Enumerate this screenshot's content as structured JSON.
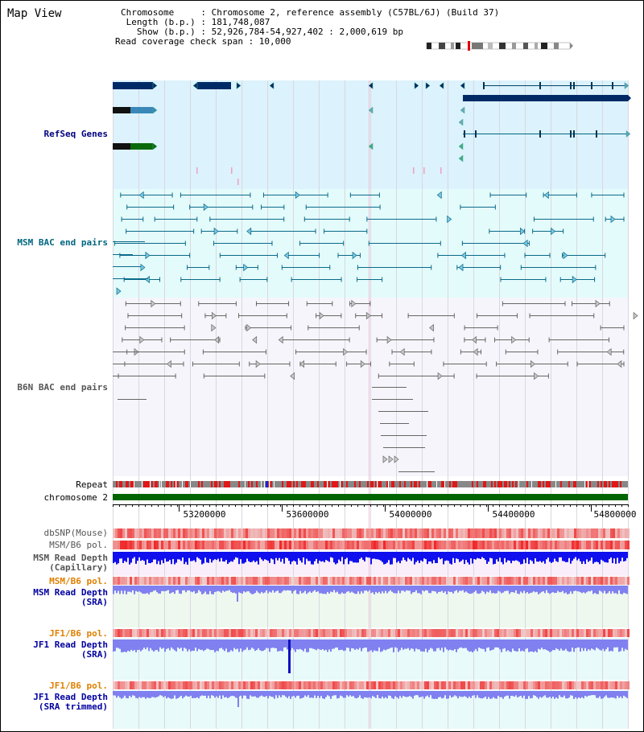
{
  "map_title": "Map View",
  "info": {
    "chromosome": "Chromosome     : Chromosome 2, reference assembly (C57BL/6J) (Build 37)",
    "length": " Length (b.p.) : 181,748,087",
    "show": "   Show (b.p.) : 52,926,784-54,927,402 : 2,000,619 bp",
    "coverage": "Read coverage check span : 10,000"
  },
  "tracks": {
    "refseq": {
      "label": "RefSeq Genes",
      "color": "#000080"
    },
    "msm_bac": {
      "label": "MSM BAC end pairs",
      "color": "#006680"
    },
    "b6n_bac": {
      "label": "B6N BAC end pairs",
      "color": "#555555"
    },
    "repeat": {
      "label": "Repeat"
    },
    "chromosome": {
      "label": "chromosome 2",
      "color": "#006400"
    },
    "dbsnp": {
      "label": "dbSNP(Mouse)"
    },
    "msm_b6_pol_1": {
      "label": "MSM/B6 pol.",
      "color": "#555555"
    },
    "msm_depth_cap": {
      "line1": "MSM Read Depth",
      "line2": "(Capillary)",
      "color": "#555555"
    },
    "msm_b6_pol_2": {
      "label": "MSM/B6 pol.",
      "color": "#e08000"
    },
    "msm_depth_sra": {
      "line1": "MSM Read Depth",
      "line2": "(SRA)",
      "color": "#0000a0"
    },
    "jf1_b6_pol_1": {
      "label": "JF1/B6 pol.",
      "color": "#e08000"
    },
    "jf1_depth_sra": {
      "line1": "JF1 Read Depth",
      "line2": "(SRA)",
      "color": "#0000a0"
    },
    "jf1_b6_pol_2": {
      "label": "JF1/B6 pol.",
      "color": "#e08000"
    },
    "jf1_depth_trim": {
      "line1": "JF1 Read Depth",
      "line2": "(SRA trimmed)",
      "color": "#0000a0"
    }
  },
  "axis": {
    "start": 52926784,
    "end": 54927402,
    "ticks": [
      "53200000",
      "53600000",
      "54000000",
      "54400000",
      "54800000"
    ]
  },
  "colors": {
    "gene_navy": "#002a66",
    "gene_steel": "#3a88b8",
    "gene_green": "#0a6a0a",
    "refseq_bg": "#dcf2fc",
    "msm_bg": "#e4fbfb",
    "b6n_bg": "#f5f5fb",
    "depth_blue": "#1010ee",
    "depth_light": "#8080f0"
  }
}
